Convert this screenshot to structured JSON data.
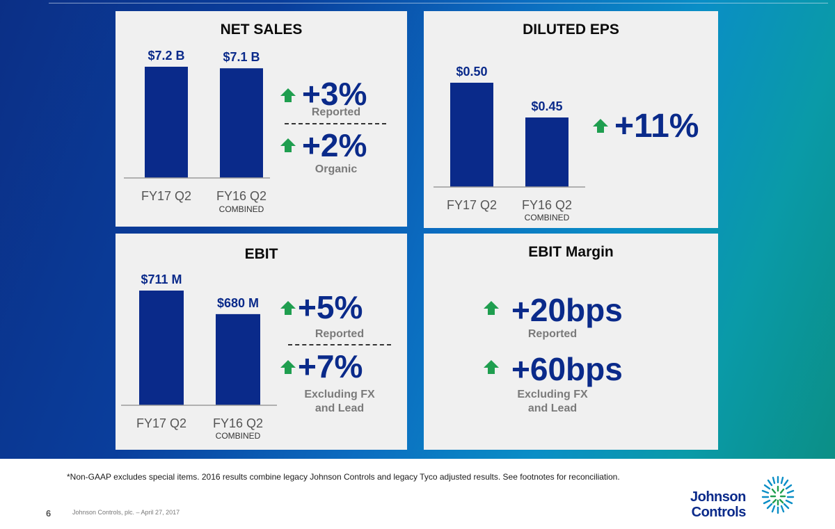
{
  "panels": {
    "net_sales": {
      "title": "NET SALES",
      "metrics": [
        {
          "value": "+3%",
          "label": "Reported"
        },
        {
          "value": "+2%",
          "label": "Organic"
        }
      ]
    },
    "diluted_eps": {
      "title": "DILUTED EPS",
      "metrics": [
        {
          "value": "+11%",
          "label": ""
        }
      ]
    },
    "ebit": {
      "title": "EBIT",
      "metrics": [
        {
          "value": "+5%",
          "label": "Reported"
        },
        {
          "value": "+7%",
          "label": "Excluding FX and Lead"
        }
      ]
    },
    "ebit_margin": {
      "title": "EBIT Margin",
      "metrics": [
        {
          "value": "+20bps",
          "label": "Reported"
        },
        {
          "value": "+60bps",
          "label": "Excluding FX and Lead"
        }
      ]
    }
  },
  "chart_data": [
    {
      "type": "bar",
      "title": "NET SALES",
      "categories": [
        "FY17 Q2",
        "FY16 Q2"
      ],
      "category_sublabels": [
        "",
        "COMBINED"
      ],
      "values": [
        7.2,
        7.1
      ],
      "data_labels": [
        "$7.2 B",
        "$7.1 B"
      ],
      "ylim": [
        0,
        7.2
      ],
      "color": "#0a2a8a"
    },
    {
      "type": "bar",
      "title": "DILUTED EPS",
      "categories": [
        "FY17 Q2",
        "FY16 Q2"
      ],
      "category_sublabels": [
        "",
        "COMBINED"
      ],
      "values": [
        0.5,
        0.45
      ],
      "data_labels": [
        "$0.50",
        "$0.45"
      ],
      "ylim": [
        0.35,
        0.5
      ],
      "color": "#0a2a8a"
    },
    {
      "type": "bar",
      "title": "EBIT",
      "categories": [
        "FY17 Q2",
        "FY16 Q2"
      ],
      "category_sublabels": [
        "",
        "COMBINED"
      ],
      "values": [
        711,
        680
      ],
      "data_labels": [
        "$711 M",
        "$680 M"
      ],
      "ylim": [
        560,
        711
      ],
      "color": "#0a2a8a"
    }
  ],
  "colors": {
    "bar": "#0a2a8a",
    "arrow_up": "#1f9e4f",
    "metric_text": "#0a2a8a",
    "label_text": "#7a7a7a"
  },
  "icons": [
    "arrow-up-icon",
    "johnson-controls-logo-icon"
  ],
  "footer": {
    "footnote": "*Non-GAAP excludes special items.  2016 results combine legacy Johnson Controls and legacy Tyco adjusted results.  See footnotes for reconciliation.",
    "page_number": "6",
    "source": "Johnson Controls, plc. – April 27, 2017",
    "logo_line1": "Johnson",
    "logo_line2": "Controls"
  }
}
